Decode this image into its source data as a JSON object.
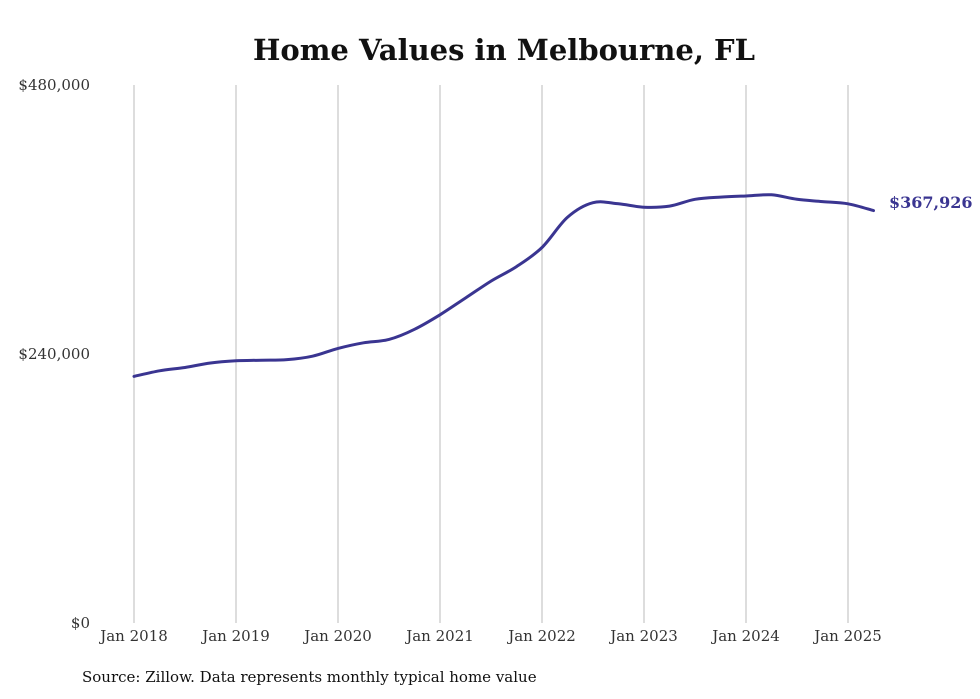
{
  "colors": {
    "line": "#3a3591",
    "grid": "#bbbbbb",
    "text": "#333333"
  },
  "source_note": "Source: Zillow. Data represents monthly typical home value",
  "chart_data": {
    "type": "line",
    "title": "Home Values in Melbourne, FL",
    "xlabel": "",
    "ylabel": "",
    "ylim": [
      0,
      480000
    ],
    "yticks": [
      0,
      240000,
      480000
    ],
    "ytick_labels": [
      "$0",
      "$240,000",
      "$480,000"
    ],
    "xticks": [
      "2018-01",
      "2019-01",
      "2020-01",
      "2021-01",
      "2022-01",
      "2023-01",
      "2024-01",
      "2025-01"
    ],
    "xtick_labels": [
      "Jan 2018",
      "Jan 2019",
      "Jan 2020",
      "Jan 2021",
      "Jan 2022",
      "Jan 2023",
      "Jan 2024",
      "Jan 2025"
    ],
    "grid": "vertical",
    "legend": "none",
    "end_label": "$367,926",
    "series": [
      {
        "x": [
          "2018-01",
          "2018-04",
          "2018-07",
          "2018-10",
          "2019-01",
          "2019-04",
          "2019-07",
          "2019-10",
          "2020-01",
          "2020-04",
          "2020-07",
          "2020-10",
          "2021-01",
          "2021-04",
          "2021-07",
          "2021-10",
          "2022-01",
          "2022-04",
          "2022-07",
          "2022-10",
          "2023-01",
          "2023-04",
          "2023-07",
          "2023-10",
          "2024-01",
          "2024-04",
          "2024-07",
          "2024-10",
          "2025-01",
          "2025-04"
        ],
        "values": [
          220000,
          225000,
          228000,
          232000,
          234000,
          234500,
          235000,
          238000,
          245000,
          250000,
          253000,
          262000,
          275000,
          290000,
          305000,
          318000,
          335000,
          362000,
          375000,
          374000,
          371000,
          372000,
          378000,
          380000,
          381000,
          382000,
          378000,
          376000,
          374000,
          367926
        ]
      }
    ]
  }
}
